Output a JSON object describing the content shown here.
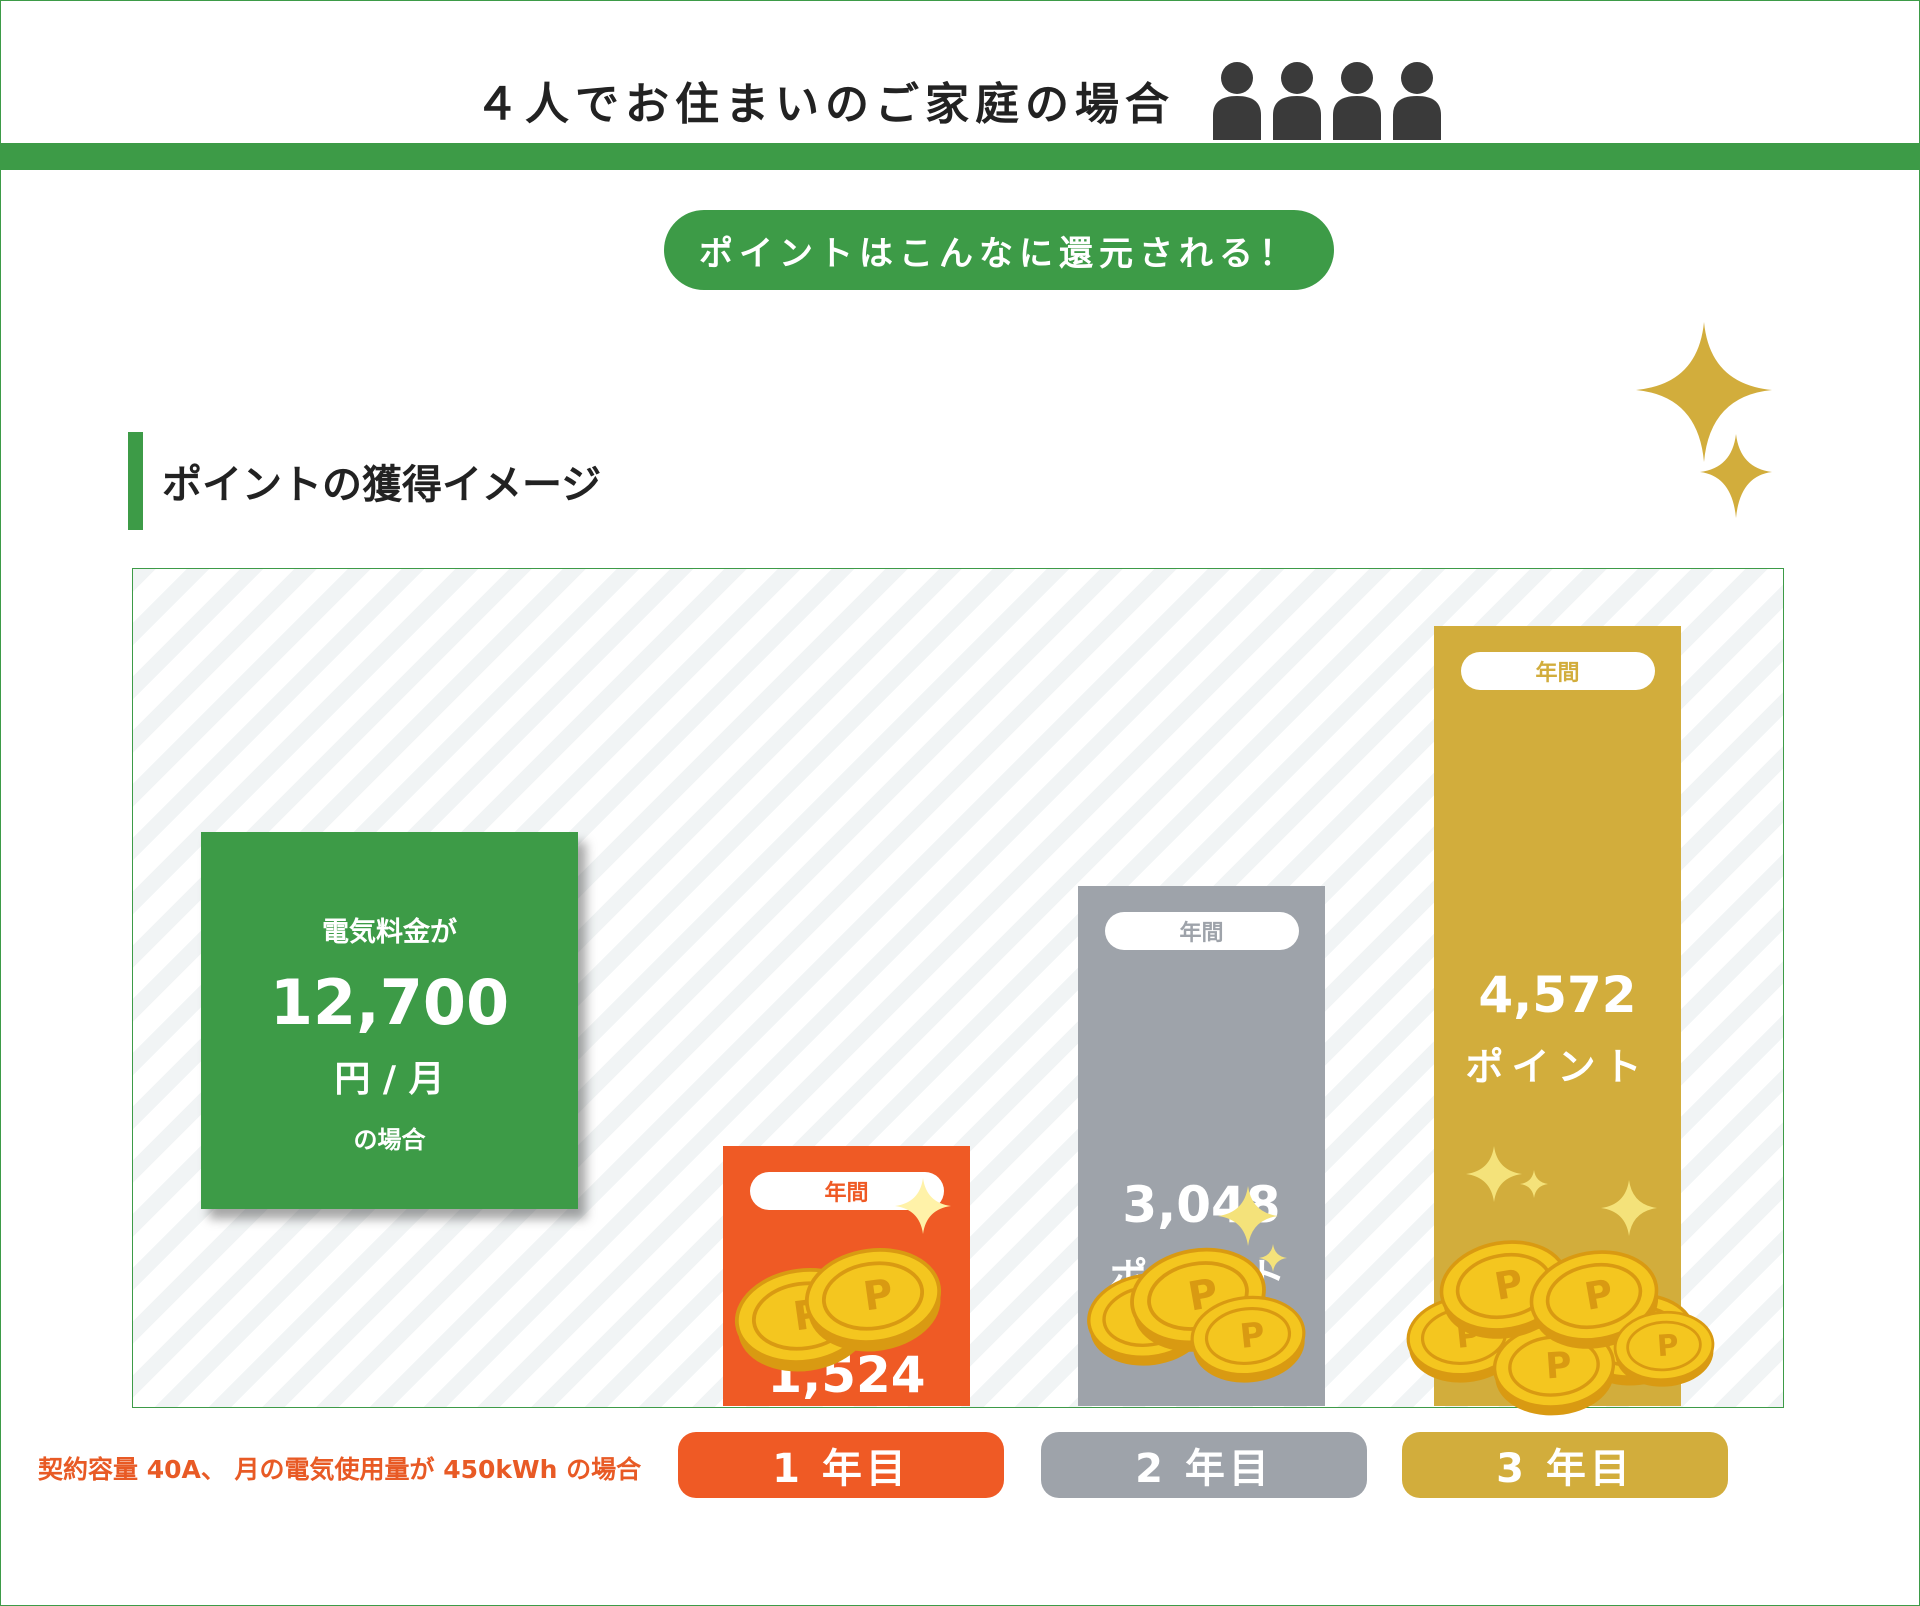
{
  "header": {
    "title": "４人でお住まいのご家庭の場合"
  },
  "subtitle": "ポイントはこんなに還元される！",
  "section_title": "ポイントの獲得イメージ",
  "bill": {
    "line1": "電気料金が",
    "amount": "12,700",
    "unit": "円 / 月",
    "case": "の場合"
  },
  "footnote": "契約容量 40A、 月の電気使用量が 450kWh の場合",
  "bar_tag_label": "年間",
  "chart_data": {
    "type": "bar",
    "categories": [
      "1 年目",
      "2 年目",
      "3 年目"
    ],
    "series": [
      {
        "values": [
          1524,
          3048,
          4572
        ]
      }
    ],
    "value_labels": [
      "1,524",
      "3,048",
      "4,572"
    ],
    "unit_label": "ポイント",
    "colors": [
      "#ef5a25",
      "#9ea3aa",
      "#d2ad3c"
    ],
    "grid": false
  },
  "colors": {
    "brand_green": "#3d9b47",
    "coin": "#f4c61f",
    "coin_dark": "#d99a12",
    "sparkle": "#d2ad3c"
  }
}
